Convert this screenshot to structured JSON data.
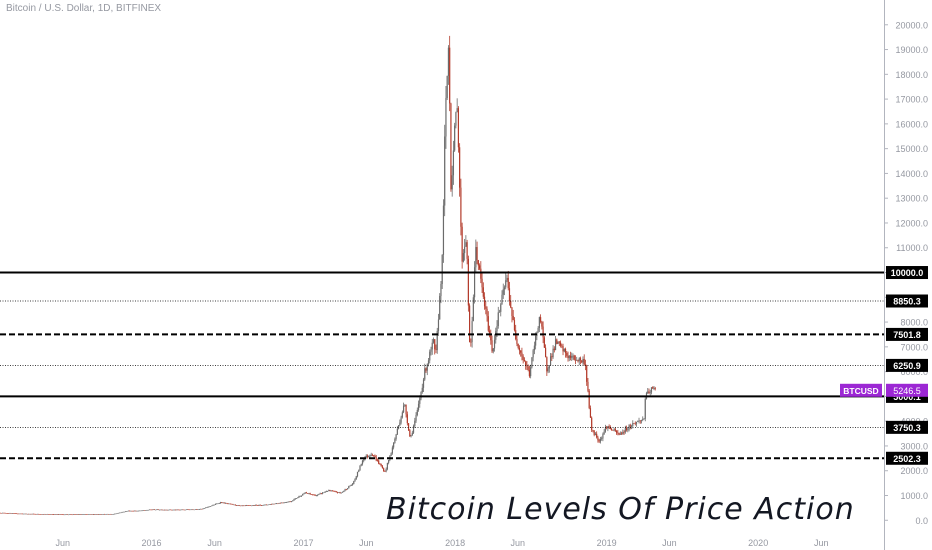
{
  "header": {
    "symbol_title": "Bitcoin / U.S. Dollar, 1D, BITFINEX"
  },
  "overlay_caption": "Bitcoin Levels Of Price Action",
  "colors": {
    "background": "#ffffff",
    "axis_text": "#9598a1",
    "candle_up": "#6b6b6b",
    "candle_down": "#b33a2a",
    "level_line": "#000000",
    "label_bg": "#000000",
    "label_text": "#ffffff",
    "ticker_bg": "#9c27d4",
    "ticker_text": "#ffffff"
  },
  "chart_data": {
    "type": "candlestick",
    "symbol": "BTCUSD",
    "y_axis": {
      "ticks": [
        0,
        1000,
        2000,
        3000,
        4000,
        5000,
        6000,
        7000,
        8000,
        9000,
        10000,
        11000,
        12000,
        13000,
        14000,
        15000,
        16000,
        17000,
        18000,
        19000,
        20000
      ],
      "tick_labels": [
        "0.0",
        "1000.0",
        "2000.0",
        "3000.0",
        "4000.0",
        "5000.0",
        "6000.0",
        "7000.0",
        "8000.0",
        "9000.0",
        "10000.0",
        "11000.0",
        "12000.0",
        "13000.0",
        "14000.0",
        "15000.0",
        "16000.0",
        "17000.0",
        "18000.0",
        "19000.0",
        "20000.0"
      ],
      "range": [
        -1200,
        21000
      ]
    },
    "x_axis": {
      "tick_labels": [
        "Jun",
        "2016",
        "Jun",
        "2017",
        "Jun",
        "2018",
        "Jun",
        "2019",
        "Jun",
        "2020",
        "Jun"
      ],
      "tick_dates": [
        "2015-06-01",
        "2016-01-01",
        "2016-06-01",
        "2017-01-01",
        "2017-06-01",
        "2018-01-01",
        "2018-06-01",
        "2019-01-01",
        "2019-06-01",
        "2020-01-01",
        "2020-06-01"
      ],
      "range": [
        "2015-01-01",
        "2020-10-30"
      ]
    },
    "levels": [
      {
        "value": 10000.0,
        "label": "10000.0",
        "style": "solid"
      },
      {
        "value": 8850.3,
        "label": "8850.3",
        "style": "dotted"
      },
      {
        "value": 7501.8,
        "label": "7501.8",
        "style": "dashed"
      },
      {
        "value": 6250.9,
        "label": "6250.9",
        "style": "dotted"
      },
      {
        "value": 5000.1,
        "label": "5000.1",
        "style": "solid"
      },
      {
        "value": 3750.3,
        "label": "3750.3",
        "style": "dotted"
      },
      {
        "value": 2502.3,
        "label": "2502.3",
        "style": "dashed"
      }
    ],
    "current_price": {
      "value": 5246.5,
      "label": "5246.5",
      "ticker": "BTCUSD"
    },
    "price_path": [
      [
        "2015-01-01",
        300
      ],
      [
        "2015-03-01",
        260
      ],
      [
        "2015-06-01",
        235
      ],
      [
        "2015-08-01",
        240
      ],
      [
        "2015-10-01",
        250
      ],
      [
        "2015-11-05",
        380
      ],
      [
        "2015-12-01",
        380
      ],
      [
        "2016-01-01",
        430
      ],
      [
        "2016-03-01",
        420
      ],
      [
        "2016-05-01",
        450
      ],
      [
        "2016-06-15",
        720
      ],
      [
        "2016-08-01",
        580
      ],
      [
        "2016-10-01",
        620
      ],
      [
        "2016-12-01",
        760
      ],
      [
        "2017-01-04",
        1100
      ],
      [
        "2017-02-01",
        1000
      ],
      [
        "2017-03-01",
        1200
      ],
      [
        "2017-04-01",
        1100
      ],
      [
        "2017-05-01",
        1500
      ],
      [
        "2017-05-25",
        2500
      ],
      [
        "2017-06-15",
        2700
      ],
      [
        "2017-07-16",
        1950
      ],
      [
        "2017-08-01",
        2800
      ],
      [
        "2017-09-01",
        4700
      ],
      [
        "2017-09-15",
        3300
      ],
      [
        "2017-10-01",
        4300
      ],
      [
        "2017-10-20",
        6000
      ],
      [
        "2017-11-10",
        7200
      ],
      [
        "2017-11-15",
        6500
      ],
      [
        "2017-12-01",
        10500
      ],
      [
        "2017-12-08",
        16000
      ],
      [
        "2017-12-17",
        19500
      ],
      [
        "2017-12-22",
        13500
      ],
      [
        "2018-01-06",
        17000
      ],
      [
        "2018-01-17",
        10500
      ],
      [
        "2018-01-28",
        11500
      ],
      [
        "2018-02-06",
        6500
      ],
      [
        "2018-02-20",
        11000
      ],
      [
        "2018-03-10",
        9000
      ],
      [
        "2018-04-01",
        6800
      ],
      [
        "2018-04-12",
        8000
      ],
      [
        "2018-05-05",
        9800
      ],
      [
        "2018-05-25",
        7500
      ],
      [
        "2018-06-10",
        6700
      ],
      [
        "2018-06-29",
        5900
      ],
      [
        "2018-07-24",
        8300
      ],
      [
        "2018-08-10",
        6100
      ],
      [
        "2018-09-01",
        7200
      ],
      [
        "2018-10-01",
        6600
      ],
      [
        "2018-11-10",
        6400
      ],
      [
        "2018-11-25",
        3700
      ],
      [
        "2018-12-15",
        3200
      ],
      [
        "2019-01-01",
        3800
      ],
      [
        "2019-02-01",
        3450
      ],
      [
        "2019-03-01",
        3850
      ],
      [
        "2019-04-01",
        4100
      ],
      [
        "2019-04-03",
        4950
      ],
      [
        "2019-04-20",
        5300
      ],
      [
        "2019-04-28",
        5246
      ]
    ]
  }
}
